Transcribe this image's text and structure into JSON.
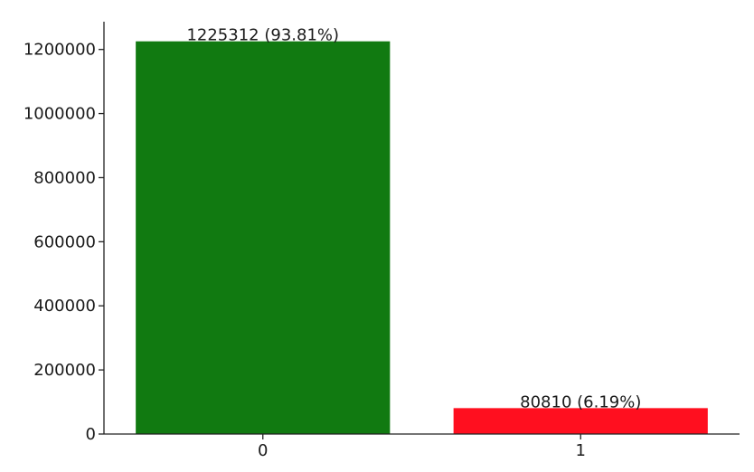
{
  "chart_data": {
    "type": "bar",
    "categories": [
      "0",
      "1"
    ],
    "values": [
      1225312,
      80810
    ],
    "data_labels": [
      "1225312 (93.81%)",
      "80810 (6.19%)"
    ],
    "colors": [
      "#117a11",
      "#ff0f1f"
    ],
    "title": "",
    "xlabel": "",
    "ylabel": "",
    "ylim": [
      0,
      1286577.6
    ],
    "yticks": [
      0,
      200000,
      400000,
      600000,
      800000,
      1000000,
      1200000
    ],
    "ytick_labels": [
      "0",
      "200000",
      "400000",
      "600000",
      "800000",
      "1000000",
      "1200000"
    ],
    "grid": false,
    "legend": "none",
    "spines": "left-bottom"
  }
}
